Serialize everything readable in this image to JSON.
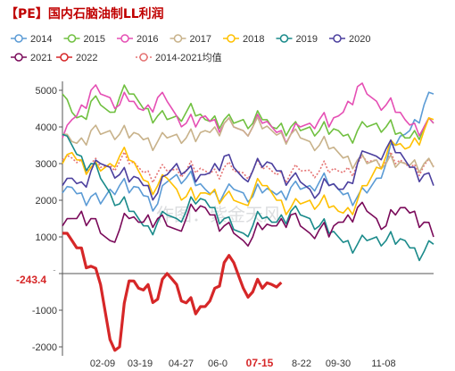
{
  "chart_data": {
    "type": "line",
    "title": "【PE】国内石脑油制LL利润",
    "watermark": "作图：紫金天风",
    "ylim": [
      -2000,
      5000
    ],
    "y_ticks": [
      "5000",
      "4000",
      "3000",
      "2000",
      "1000",
      "0",
      "-1000",
      "-2000"
    ],
    "x_ticks": [
      "02-09",
      "03-19",
      "04-27",
      "06-0",
      "07-15",
      "8-22",
      "09-30",
      "11-08"
    ],
    "highlight_tick": "07-15",
    "current_value_label": "-243.4",
    "legend_position": "top",
    "series": [
      {
        "name": "2014",
        "color": "#5b9bd5",
        "style": "solid",
        "values": [
          2200,
          2350,
          2200,
          2100,
          1900,
          2300,
          2400,
          2200,
          2350,
          2100,
          1900,
          2500,
          2700,
          2600,
          2400,
          2300,
          2250,
          2200,
          2300,
          2200,
          2100,
          2200,
          2250,
          2250,
          2350,
          2300,
          2400,
          2500,
          2400,
          2300,
          2200,
          2100,
          2200,
          2600,
          3000,
          3500,
          3800,
          4200,
          4600,
          4900
        ]
      },
      {
        "name": "2015",
        "color": "#70c040",
        "style": "solid",
        "values": [
          4900,
          4400,
          4300,
          4700,
          4600,
          4400,
          4800,
          4900,
          4700,
          4500,
          4300,
          4200,
          4300,
          4400,
          4300,
          4200,
          4300,
          4200,
          4100,
          4200,
          4100,
          4200,
          4000,
          4100,
          4000,
          3900,
          4000,
          3900,
          3800,
          3900,
          3800,
          3900,
          4000,
          4100,
          4000,
          3800,
          3700,
          3900,
          4000,
          4100
        ]
      },
      {
        "name": "2016",
        "color": "#e54fb4",
        "style": "solid",
        "values": [
          3700,
          4200,
          4600,
          5000,
          4900,
          4800,
          4600,
          4700,
          4500,
          4600,
          4800,
          4700,
          4300,
          4100,
          4000,
          4300,
          4200,
          4100,
          4000,
          3900,
          4000,
          4100,
          4000,
          3900,
          3800,
          4000,
          4100,
          4200,
          4000,
          4300,
          4700,
          5100,
          4900,
          4700,
          4600,
          4400,
          4200,
          4100,
          4000,
          4100
        ]
      },
      {
        "name": "2017",
        "color": "#c8b28a",
        "style": "solid",
        "values": [
          3800,
          3600,
          3700,
          3900,
          3800,
          3900,
          3800,
          3700,
          3800,
          3700,
          3600,
          3700,
          3800,
          3700,
          3600,
          3900,
          4000,
          4100,
          4000,
          3900,
          4000,
          3950,
          3900,
          3850,
          3800,
          3700,
          3600,
          3500,
          3400,
          3300,
          3200,
          3100,
          3000,
          3100,
          3000,
          2900,
          3000,
          3100,
          3000,
          2900
        ]
      },
      {
        "name": "2018",
        "color": "#ffc000",
        "style": "solid",
        "values": [
          3000,
          3300,
          3100,
          2900,
          2800,
          3000,
          3200,
          3100,
          2800,
          2500,
          2400,
          2600,
          2300,
          2100,
          2000,
          2200,
          2300,
          2100,
          2000,
          1900,
          2200,
          2400,
          2200,
          2000,
          1800,
          1900,
          2000,
          1900,
          1800,
          1700,
          1800,
          2000,
          2400,
          2900,
          3200,
          3500,
          3400,
          3700,
          3900,
          4200
        ]
      },
      {
        "name": "2019",
        "color": "#1a8a8a",
        "style": "solid",
        "values": [
          3800,
          3500,
          3200,
          3000,
          2600,
          2200,
          1900,
          1700,
          1500,
          1300,
          1400,
          1600,
          1500,
          1700,
          1900,
          2000,
          1800,
          1500,
          1200,
          1100,
          1300,
          1500,
          1400,
          1600,
          1700,
          1600,
          1500,
          1300,
          1100,
          1000,
          900,
          800,
          900,
          1000,
          900,
          800,
          900,
          700,
          600,
          800
        ]
      },
      {
        "name": "2020",
        "color": "#4b3f9e",
        "style": "solid",
        "values": [
          2400,
          2600,
          2500,
          2800,
          3000,
          2900,
          2700,
          2500,
          2600,
          2400,
          2200,
          2700,
          3000,
          2800,
          2500,
          2700,
          3000,
          3200,
          2900,
          2600,
          2800,
          2900,
          3000,
          2800,
          2600,
          2500,
          2300,
          2200,
          2400,
          2300,
          2500,
          3000,
          3300,
          3200,
          3400,
          3300,
          3100,
          2900,
          2700,
          2400
        ]
      },
      {
        "name": "2021",
        "color": "#7a0a5a",
        "style": "solid",
        "values": [
          1300,
          1500,
          1700,
          1500,
          1100,
          900,
          1200,
          1500,
          1400,
          1600,
          1500,
          1300,
          1200,
          1500,
          1700,
          1800,
          1600,
          1300,
          1100,
          900,
          1000,
          1200,
          1300,
          1500,
          1600,
          1300,
          1100,
          1200,
          1000,
          1400,
          1600,
          1800,
          1700,
          1500,
          1300,
          1600,
          1800,
          1700,
          1400,
          1000
        ]
      },
      {
        "name": "2022",
        "color": "#d62728",
        "style": "solid",
        "values": [
          1100,
          900,
          700,
          200,
          -300,
          -1800,
          -2000,
          -200,
          -400,
          -300,
          -700,
          0,
          -300,
          -800,
          -1100,
          -900,
          -400,
          300,
          300,
          -400,
          -500,
          -400,
          -300,
          -243.4
        ]
      },
      {
        "name": "2014-2021均值",
        "color": "#e57373",
        "style": "dotted",
        "values": [
          3100,
          3150,
          3100,
          3000,
          2900,
          2950,
          3050,
          3000,
          2900,
          2800,
          2750,
          2800,
          2850,
          2800,
          2750,
          2800,
          2850,
          2900,
          2800,
          2750,
          2800,
          2850,
          2800,
          2780,
          2750,
          2800,
          2820,
          2800,
          2750,
          2800,
          2900,
          3000,
          3050,
          3100,
          3050,
          3000,
          3000,
          2980,
          2950,
          2920
        ]
      }
    ]
  }
}
